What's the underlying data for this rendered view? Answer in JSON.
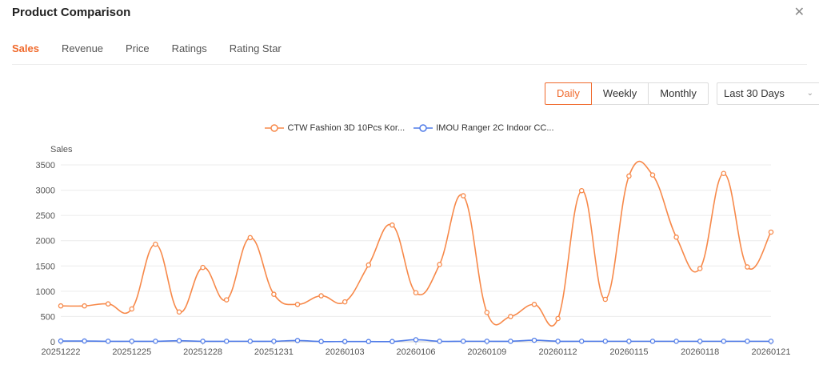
{
  "window": {
    "title": "Product Comparison",
    "close_icon": "close-icon"
  },
  "tabs": [
    {
      "label": "Sales",
      "active": true
    },
    {
      "label": "Revenue"
    },
    {
      "label": "Price"
    },
    {
      "label": "Ratings"
    },
    {
      "label": "Rating Star"
    }
  ],
  "granularity": {
    "options": [
      "Daily",
      "Weekly",
      "Monthly"
    ],
    "selected": "Daily"
  },
  "range_select": {
    "value": "Last 30 Days",
    "icon": "chevron-down-icon"
  },
  "colors": {
    "accent": "#f0692b",
    "series1": "#f7894a",
    "series2": "#4f7be8"
  },
  "chart_data": {
    "type": "line",
    "ylabel": "Sales",
    "ylim": [
      0,
      3500
    ],
    "yticks": [
      0,
      500,
      1000,
      1500,
      2000,
      2500,
      3000,
      3500
    ],
    "x": [
      "20251222",
      "20251223",
      "20251224",
      "20251225",
      "20251226",
      "20251227",
      "20251228",
      "20251229",
      "20251230",
      "20251231",
      "20260101",
      "20260102",
      "20260103",
      "20260104",
      "20260105",
      "20260106",
      "20260107",
      "20260108",
      "20260109",
      "20260110",
      "20260111",
      "20260112",
      "20260113",
      "20260114",
      "20260115",
      "20260116",
      "20260117",
      "20260118",
      "20260119",
      "20260120",
      "20260121"
    ],
    "xtick_labels": [
      "20251222",
      "20251225",
      "20251228",
      "20251231",
      "20260103",
      "20260106",
      "20260109",
      "20260112",
      "20260115",
      "20260118",
      "20260121"
    ],
    "grid": true,
    "legend_position": "top-center",
    "series": [
      {
        "name": "CTW Fashion 3D 10Pcs Kor...",
        "values": [
          710,
          710,
          750,
          650,
          1930,
          590,
          1470,
          830,
          2060,
          940,
          740,
          910,
          790,
          1520,
          2310,
          970,
          1530,
          2890,
          580,
          500,
          740,
          460,
          2990,
          840,
          3280,
          3300,
          2070,
          1450,
          3330,
          1480,
          2170
        ]
      },
      {
        "name": "IMOU Ranger 2C Indoor CC...",
        "values": [
          15,
          15,
          10,
          10,
          10,
          20,
          10,
          10,
          10,
          10,
          25,
          5,
          5,
          5,
          5,
          40,
          10,
          10,
          10,
          10,
          30,
          10,
          10,
          10,
          10,
          10,
          10,
          10,
          10,
          10,
          10
        ]
      }
    ]
  }
}
